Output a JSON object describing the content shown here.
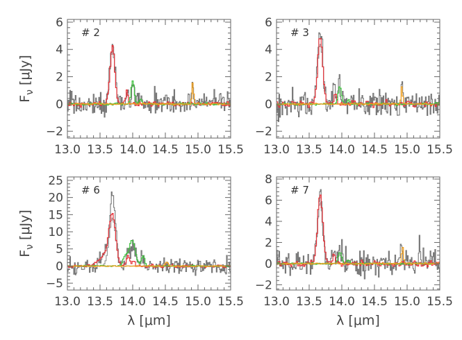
{
  "chart_data": [
    {
      "type": "line",
      "title": "# 2",
      "xlabel": "",
      "ylabel": "F_ν [μJy]",
      "xlim": [
        13.0,
        15.5
      ],
      "ylim": [
        -2.5,
        6.2
      ],
      "xticks": [
        13.0,
        13.5,
        14.0,
        14.5,
        15.0,
        15.5
      ],
      "xtick_labels": [
        "13.0",
        "13.5",
        "14.0",
        "14.5",
        "15.0",
        "15.5"
      ],
      "yticks": [
        -2,
        0,
        2,
        4,
        6
      ],
      "series": [
        {
          "color": "#777777",
          "noise_seed": 11,
          "noise_amp": 0.65,
          "fine": true,
          "lines": [
            {
              "x": 13.69,
              "w": 0.038,
              "a": 4.4
            },
            {
              "x": 13.92,
              "w": 0.02,
              "a": 0.8
            },
            {
              "x": 14.01,
              "w": 0.02,
              "a": 1.6
            },
            {
              "x": 14.91,
              "w": 0.012,
              "a": 1.7
            }
          ]
        },
        {
          "color": "#999999",
          "noise_seed": 0,
          "noise_amp": 0,
          "lines": [
            {
              "x": 13.69,
              "w": 0.04,
              "a": 3.9
            }
          ]
        },
        {
          "color": "#e8333a",
          "noise_seed": 3,
          "noise_amp": 0.13,
          "lines": [
            {
              "x": 13.69,
              "w": 0.036,
              "a": 4.3
            },
            {
              "x": 13.91,
              "w": 0.02,
              "a": 0.9
            }
          ]
        },
        {
          "color": "#3fc23f",
          "noise_seed": 5,
          "noise_amp": 0.06,
          "lines": [
            {
              "x": 14.0,
              "w": 0.025,
              "a": 1.7
            },
            {
              "x": 14.12,
              "w": 0.02,
              "a": 0.3
            }
          ]
        },
        {
          "color": "#f0a020",
          "noise_seed": 7,
          "noise_amp": 0.04,
          "lines": [
            {
              "x": 14.92,
              "w": 0.012,
              "a": 1.6
            }
          ]
        }
      ]
    },
    {
      "type": "line",
      "title": "# 3",
      "xlabel": "",
      "ylabel": "",
      "xlim": [
        13.0,
        15.5
      ],
      "ylim": [
        -2.5,
        6.2
      ],
      "xticks": [
        13.0,
        13.5,
        14.0,
        14.5,
        15.0,
        15.5
      ],
      "xtick_labels": [
        "13.0",
        "13.5",
        "14.0",
        "14.5",
        "15.0",
        "15.5"
      ],
      "yticks": [
        -2,
        0,
        2,
        4,
        6
      ],
      "series": [
        {
          "color": "#777777",
          "noise_seed": 21,
          "noise_amp": 0.7,
          "fine": true,
          "lines": [
            {
              "x": 13.67,
              "w": 0.04,
              "a": 5.3
            },
            {
              "x": 13.88,
              "w": 0.02,
              "a": 1.3
            },
            {
              "x": 13.96,
              "w": 0.02,
              "a": 1.5
            },
            {
              "x": 14.92,
              "w": 0.012,
              "a": 1.5
            }
          ]
        },
        {
          "color": "#999999",
          "noise_seed": 0,
          "noise_amp": 0,
          "lines": [
            {
              "x": 13.67,
              "w": 0.042,
              "a": 4.4
            }
          ]
        },
        {
          "color": "#e8333a",
          "noise_seed": 23,
          "noise_amp": 0.16,
          "lines": [
            {
              "x": 13.67,
              "w": 0.038,
              "a": 5.0
            },
            {
              "x": 13.9,
              "w": 0.02,
              "a": 0.7
            }
          ]
        },
        {
          "color": "#3fc23f",
          "noise_seed": 25,
          "noise_amp": 0.06,
          "lines": [
            {
              "x": 13.97,
              "w": 0.025,
              "a": 1.3
            },
            {
              "x": 14.1,
              "w": 0.02,
              "a": 0.3
            }
          ]
        },
        {
          "color": "#f0a020",
          "noise_seed": 27,
          "noise_amp": 0.04,
          "lines": [
            {
              "x": 14.92,
              "w": 0.012,
              "a": 1.3
            }
          ]
        }
      ]
    },
    {
      "type": "line",
      "title": "# 6",
      "xlabel": "λ [μm]",
      "ylabel": "F_ν [μJy]",
      "xlim": [
        13.0,
        15.5
      ],
      "ylim": [
        -7,
        26
      ],
      "xticks": [
        13.0,
        13.5,
        14.0,
        14.5,
        15.0,
        15.5
      ],
      "xtick_labels": [
        "13.0",
        "13.5",
        "14.0",
        "14.5",
        "15.0",
        "15.5"
      ],
      "yticks": [
        -5,
        0,
        5,
        10,
        15,
        20,
        25
      ],
      "series": [
        {
          "color": "#777777",
          "noise_seed": 31,
          "noise_amp": 1.6,
          "fine": true,
          "lines": [
            {
              "x": 13.69,
              "w": 0.045,
              "a": 20
            },
            {
              "x": 13.58,
              "w": 0.08,
              "a": 3
            },
            {
              "x": 13.93,
              "w": 0.03,
              "a": 5
            },
            {
              "x": 14.02,
              "w": 0.03,
              "a": 6
            },
            {
              "x": 14.15,
              "w": 0.025,
              "a": 3
            }
          ]
        },
        {
          "color": "#999999",
          "noise_seed": 0,
          "noise_amp": 0,
          "lines": [
            {
              "x": 13.69,
              "w": 0.05,
              "a": 14
            }
          ]
        },
        {
          "color": "#e8333a",
          "noise_seed": 33,
          "noise_amp": 0.3,
          "lines": [
            {
              "x": 13.69,
              "w": 0.05,
              "a": 14
            },
            {
              "x": 13.57,
              "w": 0.09,
              "a": 3
            },
            {
              "x": 13.93,
              "w": 0.025,
              "a": 3.2
            },
            {
              "x": 14.02,
              "w": 0.02,
              "a": 1.5
            }
          ]
        },
        {
          "color": "#3fc23f",
          "noise_seed": 35,
          "noise_amp": 0.15,
          "lines": [
            {
              "x": 13.99,
              "w": 0.05,
              "a": 7.5
            },
            {
              "x": 13.88,
              "w": 0.03,
              "a": 2.5
            },
            {
              "x": 14.16,
              "w": 0.025,
              "a": 3.0
            }
          ]
        },
        {
          "color": "#f0a020",
          "noise_seed": 37,
          "noise_amp": 0.1,
          "lines": [
            {
              "x": 14.52,
              "w": 0.02,
              "a": 1.2
            }
          ]
        }
      ]
    },
    {
      "type": "line",
      "title": "# 7",
      "xlabel": "λ [μm]",
      "ylabel": "",
      "xlim": [
        13.0,
        15.5
      ],
      "ylim": [
        -2.5,
        8.2
      ],
      "xticks": [
        13.0,
        13.5,
        14.0,
        14.5,
        15.0,
        15.5
      ],
      "xtick_labels": [
        "13.0",
        "13.5",
        "14.0",
        "14.5",
        "15.0",
        "15.5"
      ],
      "yticks": [
        -2,
        0,
        2,
        4,
        6,
        8
      ],
      "series": [
        {
          "color": "#777777",
          "noise_seed": 41,
          "noise_amp": 0.95,
          "fine": true,
          "lines": [
            {
              "x": 13.67,
              "w": 0.04,
              "a": 6.6
            },
            {
              "x": 13.87,
              "w": 0.02,
              "a": 1.4
            },
            {
              "x": 13.98,
              "w": 0.02,
              "a": 1.2
            },
            {
              "x": 14.91,
              "w": 0.015,
              "a": 2.4
            },
            {
              "x": 15.2,
              "w": 0.02,
              "a": 1.4
            }
          ]
        },
        {
          "color": "#999999",
          "noise_seed": 0,
          "noise_amp": 0,
          "lines": [
            {
              "x": 13.67,
              "w": 0.042,
              "a": 5.8
            }
          ]
        },
        {
          "color": "#e8333a",
          "noise_seed": 43,
          "noise_amp": 0.2,
          "lines": [
            {
              "x": 13.67,
              "w": 0.04,
              "a": 6.5
            },
            {
              "x": 13.88,
              "w": 0.02,
              "a": 0.8
            }
          ]
        },
        {
          "color": "#3fc23f",
          "noise_seed": 45,
          "noise_amp": 0.06,
          "lines": [
            {
              "x": 13.97,
              "w": 0.025,
              "a": 1.1
            },
            {
              "x": 14.1,
              "w": 0.02,
              "a": 0.3
            }
          ]
        },
        {
          "color": "#f0a020",
          "noise_seed": 47,
          "noise_amp": 0.05,
          "lines": [
            {
              "x": 14.93,
              "w": 0.013,
              "a": 1.6
            }
          ]
        }
      ]
    }
  ]
}
